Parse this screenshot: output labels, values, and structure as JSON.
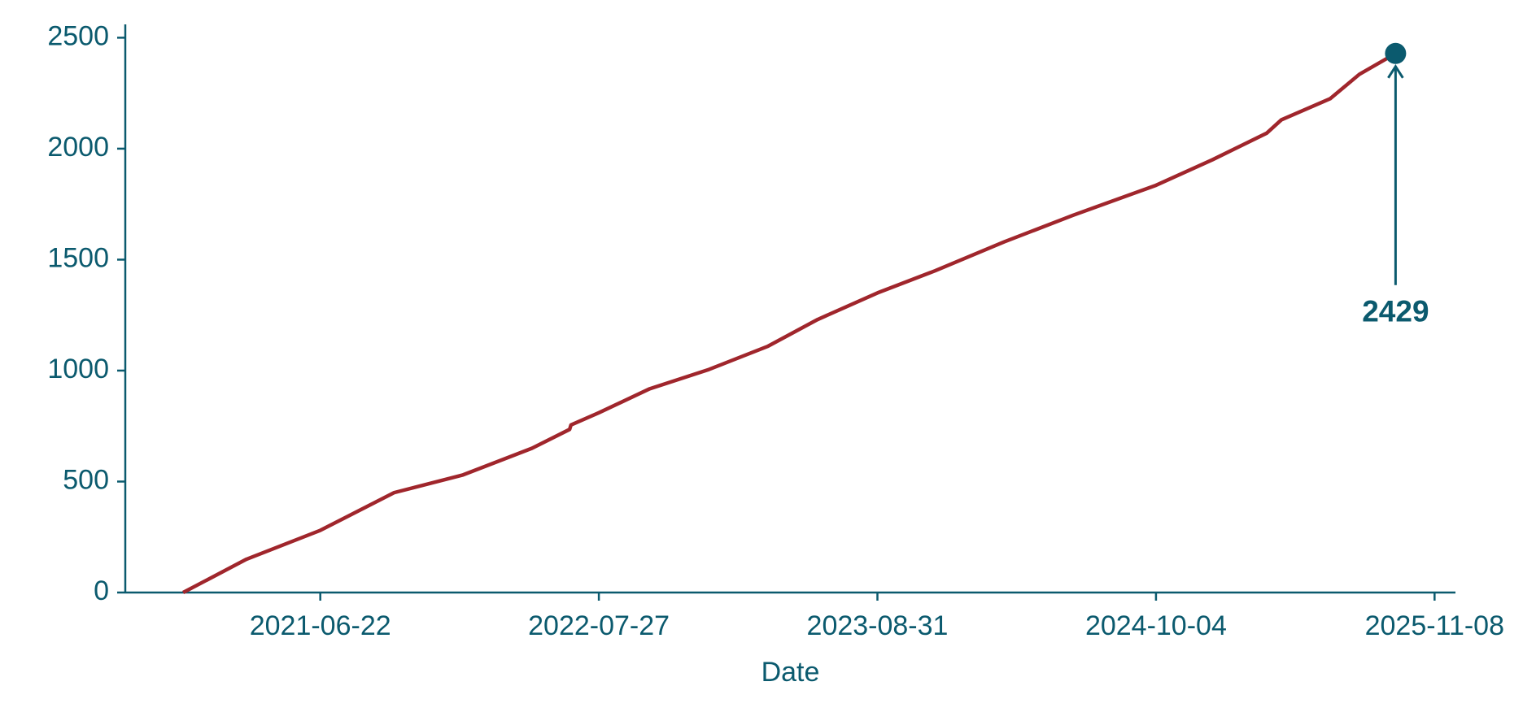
{
  "chart_data": {
    "type": "line",
    "x_label": "Date",
    "x": [
      "2020-12-07",
      "2021-03-08",
      "2021-06-22",
      "2021-10-06",
      "2022-01-13",
      "2022-04-22",
      "2022-06-15",
      "2022-06-17",
      "2022-07-27",
      "2022-10-08",
      "2023-01-01",
      "2023-03-27",
      "2023-06-06",
      "2023-08-31",
      "2023-11-22",
      "2024-02-29",
      "2024-06-07",
      "2024-10-04",
      "2024-12-24",
      "2025-03-12",
      "2025-04-02",
      "2025-06-11",
      "2025-07-23",
      "2025-09-13"
    ],
    "series": [
      {
        "color": "#a0262c",
        "values": [
          0,
          150,
          280,
          450,
          530,
          650,
          735,
          755,
          810,
          918,
          1005,
          1110,
          1230,
          1350,
          1450,
          1580,
          1700,
          1835,
          1950,
          2070,
          2130,
          2225,
          2335,
          2429
        ]
      }
    ],
    "xlim": [
      "2020-09-15",
      "2025-12-08"
    ],
    "xticks": [
      "2021-06-22",
      "2022-07-27",
      "2023-08-31",
      "2024-10-04",
      "2025-11-08"
    ],
    "ylim": [
      0,
      2560
    ],
    "yticks": [
      0,
      500,
      1000,
      1500,
      2000,
      2500
    ],
    "axis_color": "#0b5a6e"
  }
}
